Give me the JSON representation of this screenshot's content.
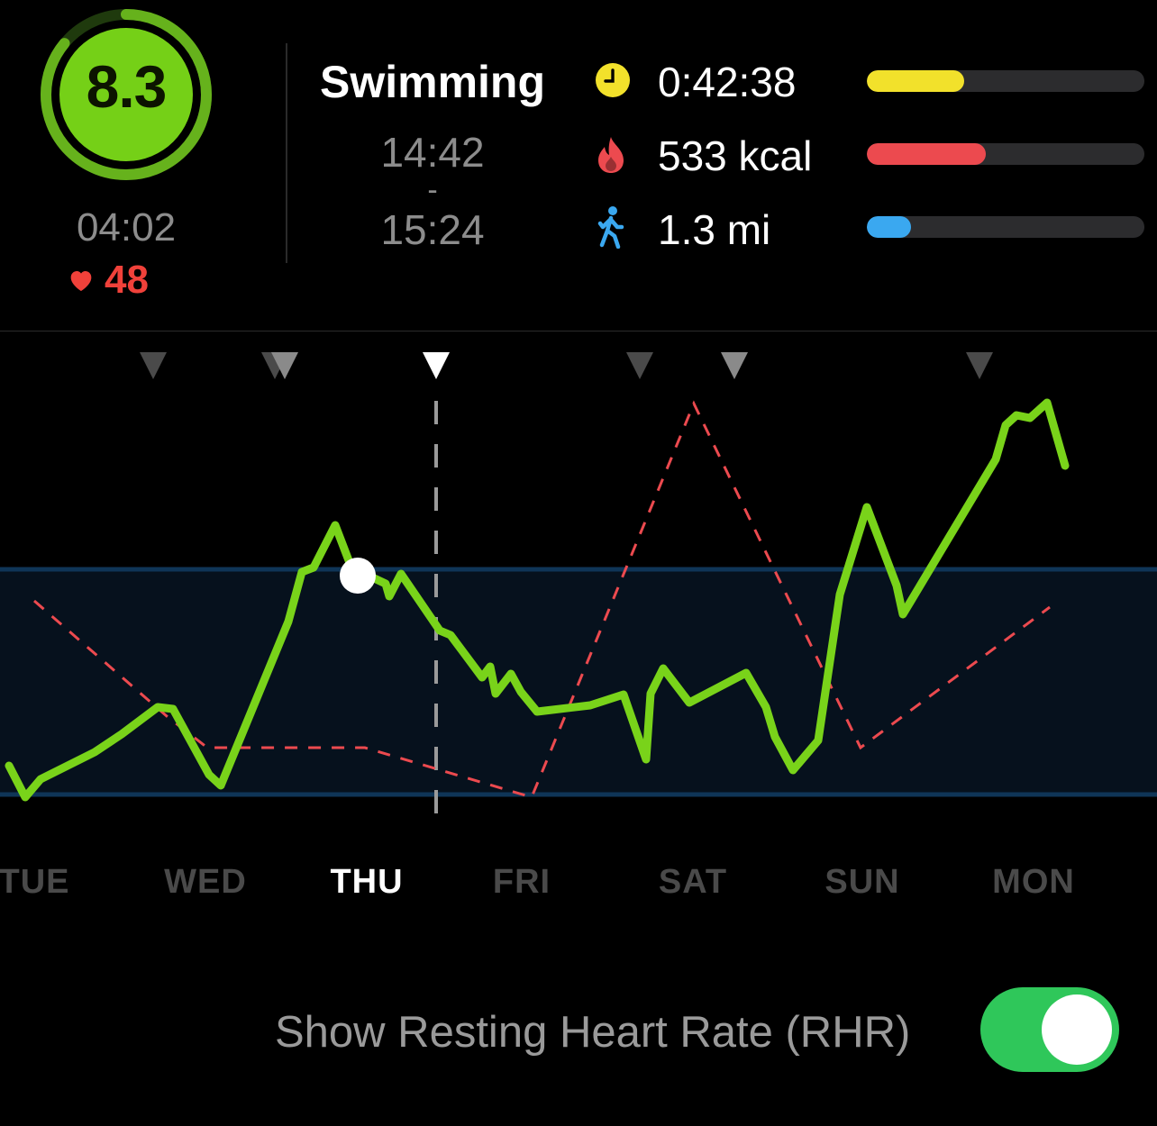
{
  "summary": {
    "score": "8.3",
    "score_progress": 0.86,
    "ring_time": "04:02",
    "heart_rate": "48"
  },
  "activity": {
    "name": "Swimming",
    "start": "14:42",
    "separator": "-",
    "end": "15:24"
  },
  "stats": [
    {
      "icon": "clock-icon",
      "value": "0:42:38",
      "progress": 0.35,
      "color": "#f2e12b"
    },
    {
      "icon": "flame-icon",
      "value": "533 kcal",
      "progress": 0.43,
      "color": "#ec4a4f"
    },
    {
      "icon": "walking-person-icon",
      "value": "1.3 mi",
      "progress": 0.16,
      "color": "#3aa8f0"
    }
  ],
  "chart_data": {
    "type": "line",
    "x_labels": [
      "TUE",
      "WED",
      "THU",
      "FRI",
      "SAT",
      "SUN",
      "MON"
    ],
    "selected_day": "THU",
    "series": [
      {
        "values": [
          0.3,
          0.2,
          0.27,
          0.32,
          0.4,
          0.48,
          0.55,
          0.54,
          0.38,
          0.2,
          0.36,
          0.55,
          0.68,
          0.72,
          0.86,
          0.74,
          0.72,
          0.7,
          0.71,
          0.68,
          0.56,
          0.5,
          0.46,
          0.48,
          0.43,
          0.48,
          0.42,
          0.4,
          0.41,
          0.42,
          0.43,
          0.36,
          0.48,
          0.44,
          0.46,
          0.48,
          0.42,
          0.31,
          0.38,
          0.58,
          0.92,
          0.82,
          0.98,
          1.14,
          1.26,
          1.27,
          1.28,
          1.21
        ],
        "color": "#79d31a"
      },
      {
        "values": [
          0.62,
          0.34,
          0.33,
          0.33,
          0.19,
          0.38,
          1.2,
          0.33,
          0.62
        ],
        "color": "#ec4a4f"
      }
    ],
    "reference_band": [
      0.2,
      0.74
    ],
    "event_markers": 7
  },
  "settings": {
    "rhr_label": "Show Resting Heart Rate (RHR)",
    "rhr_enabled": true
  }
}
